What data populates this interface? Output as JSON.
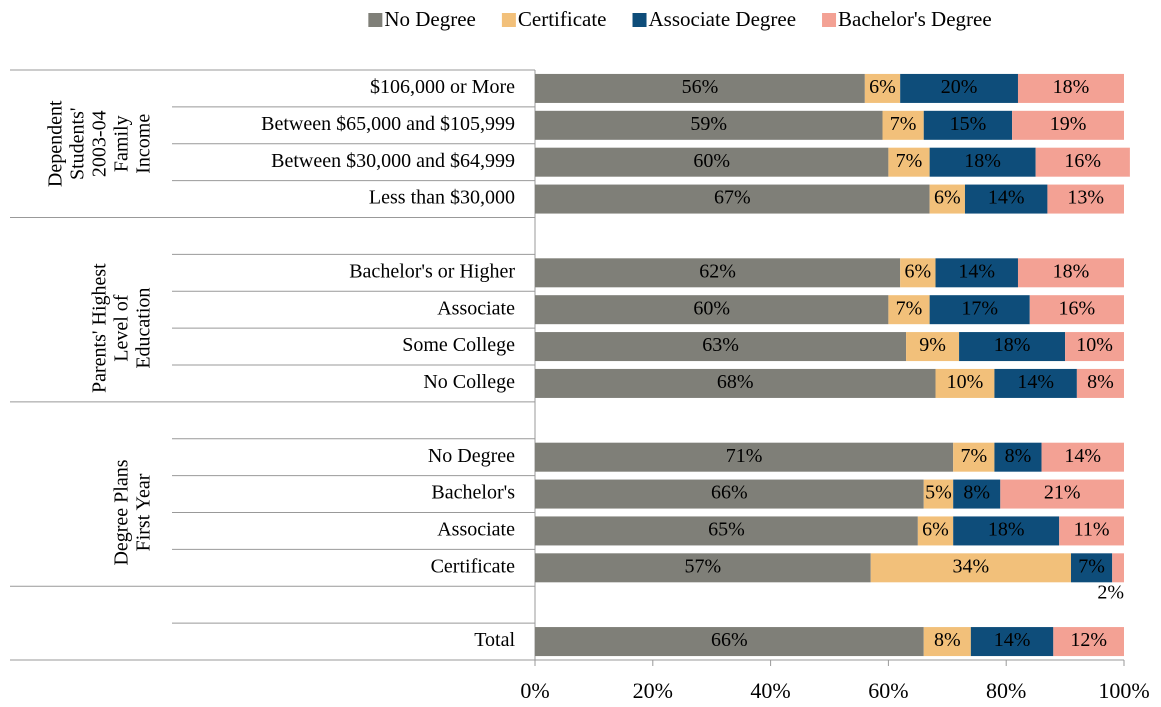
{
  "chart_data": {
    "type": "stacked-bar-horizontal",
    "groups": [
      {
        "lines": [
          "Dependent",
          "Students'",
          "2003-04",
          "Family",
          "Income"
        ]
      },
      {
        "lines": [
          "Parents' Highest",
          "Level of",
          "Education"
        ]
      },
      {
        "lines": [
          "Degree Plans",
          "First Year"
        ]
      }
    ],
    "categories": [
      "$106,000 or More",
      "Between $65,000 and $105,999",
      "Between $30,000 and $64,999",
      "Less than $30,000",
      null,
      "Bachelor's or Higher",
      "Associate",
      "Some College",
      "No College",
      null,
      "No Degree",
      "Bachelor's",
      "Associate",
      "Certificate",
      null,
      "Total"
    ],
    "series": [
      {
        "name": "No Degree",
        "color": "#7f7f78",
        "label_color": "#ffffff",
        "values": [
          56,
          59,
          60,
          67,
          null,
          62,
          60,
          63,
          68,
          null,
          71,
          66,
          65,
          57,
          null,
          66
        ],
        "value_labels": [
          "56%",
          "59%",
          "60%",
          "67%",
          null,
          "62%",
          "60%",
          "63%",
          "68%",
          null,
          "71%",
          "66%",
          "65%",
          "57%",
          null,
          "66%"
        ]
      },
      {
        "name": "Certificate",
        "color": "#f2c07a",
        "label_color": "#000000",
        "values": [
          6,
          7,
          7,
          6,
          null,
          6,
          7,
          9,
          10,
          null,
          7,
          5,
          6,
          34,
          null,
          8
        ],
        "value_labels": [
          "6%",
          "7%",
          "7%",
          "6%",
          null,
          "6%",
          "7%",
          "9%",
          "10%",
          null,
          "7%",
          "5%",
          "6%",
          "34%",
          null,
          "8%"
        ]
      },
      {
        "name": "Associate Degree",
        "color": "#0e4d7a",
        "label_color": "#ffffff",
        "values": [
          20,
          15,
          18,
          14,
          null,
          14,
          17,
          18,
          14,
          null,
          8,
          8,
          18,
          7,
          null,
          14
        ],
        "value_labels": [
          "20%",
          "15%",
          "18%",
          "14%",
          null,
          "14%",
          "17%",
          "18%",
          "14%",
          null,
          "8%",
          "8%",
          "18%",
          "7%",
          null,
          "14%"
        ]
      },
      {
        "name": "Bachelor's Degree",
        "color": "#f3a194",
        "label_color": "#000000",
        "values": [
          18,
          19,
          16,
          13,
          null,
          18,
          16,
          10,
          8,
          null,
          14,
          21,
          11,
          2,
          null,
          12
        ],
        "value_labels": [
          "18%",
          "19%",
          "16%",
          "13%",
          null,
          "18%",
          "16%",
          "10%",
          "8%",
          null,
          "14%",
          "21%",
          "11%",
          "2%",
          null,
          "12%"
        ]
      }
    ],
    "xlim": [
      0,
      100
    ],
    "xticks": [
      {
        "value": 0,
        "label": "0%"
      },
      {
        "value": 20,
        "label": "20%"
      },
      {
        "value": 40,
        "label": "40%"
      },
      {
        "value": 60,
        "label": "60%"
      },
      {
        "value": 80,
        "label": "80%"
      },
      {
        "value": 100,
        "label": "100%"
      }
    ],
    "legend": "top"
  }
}
